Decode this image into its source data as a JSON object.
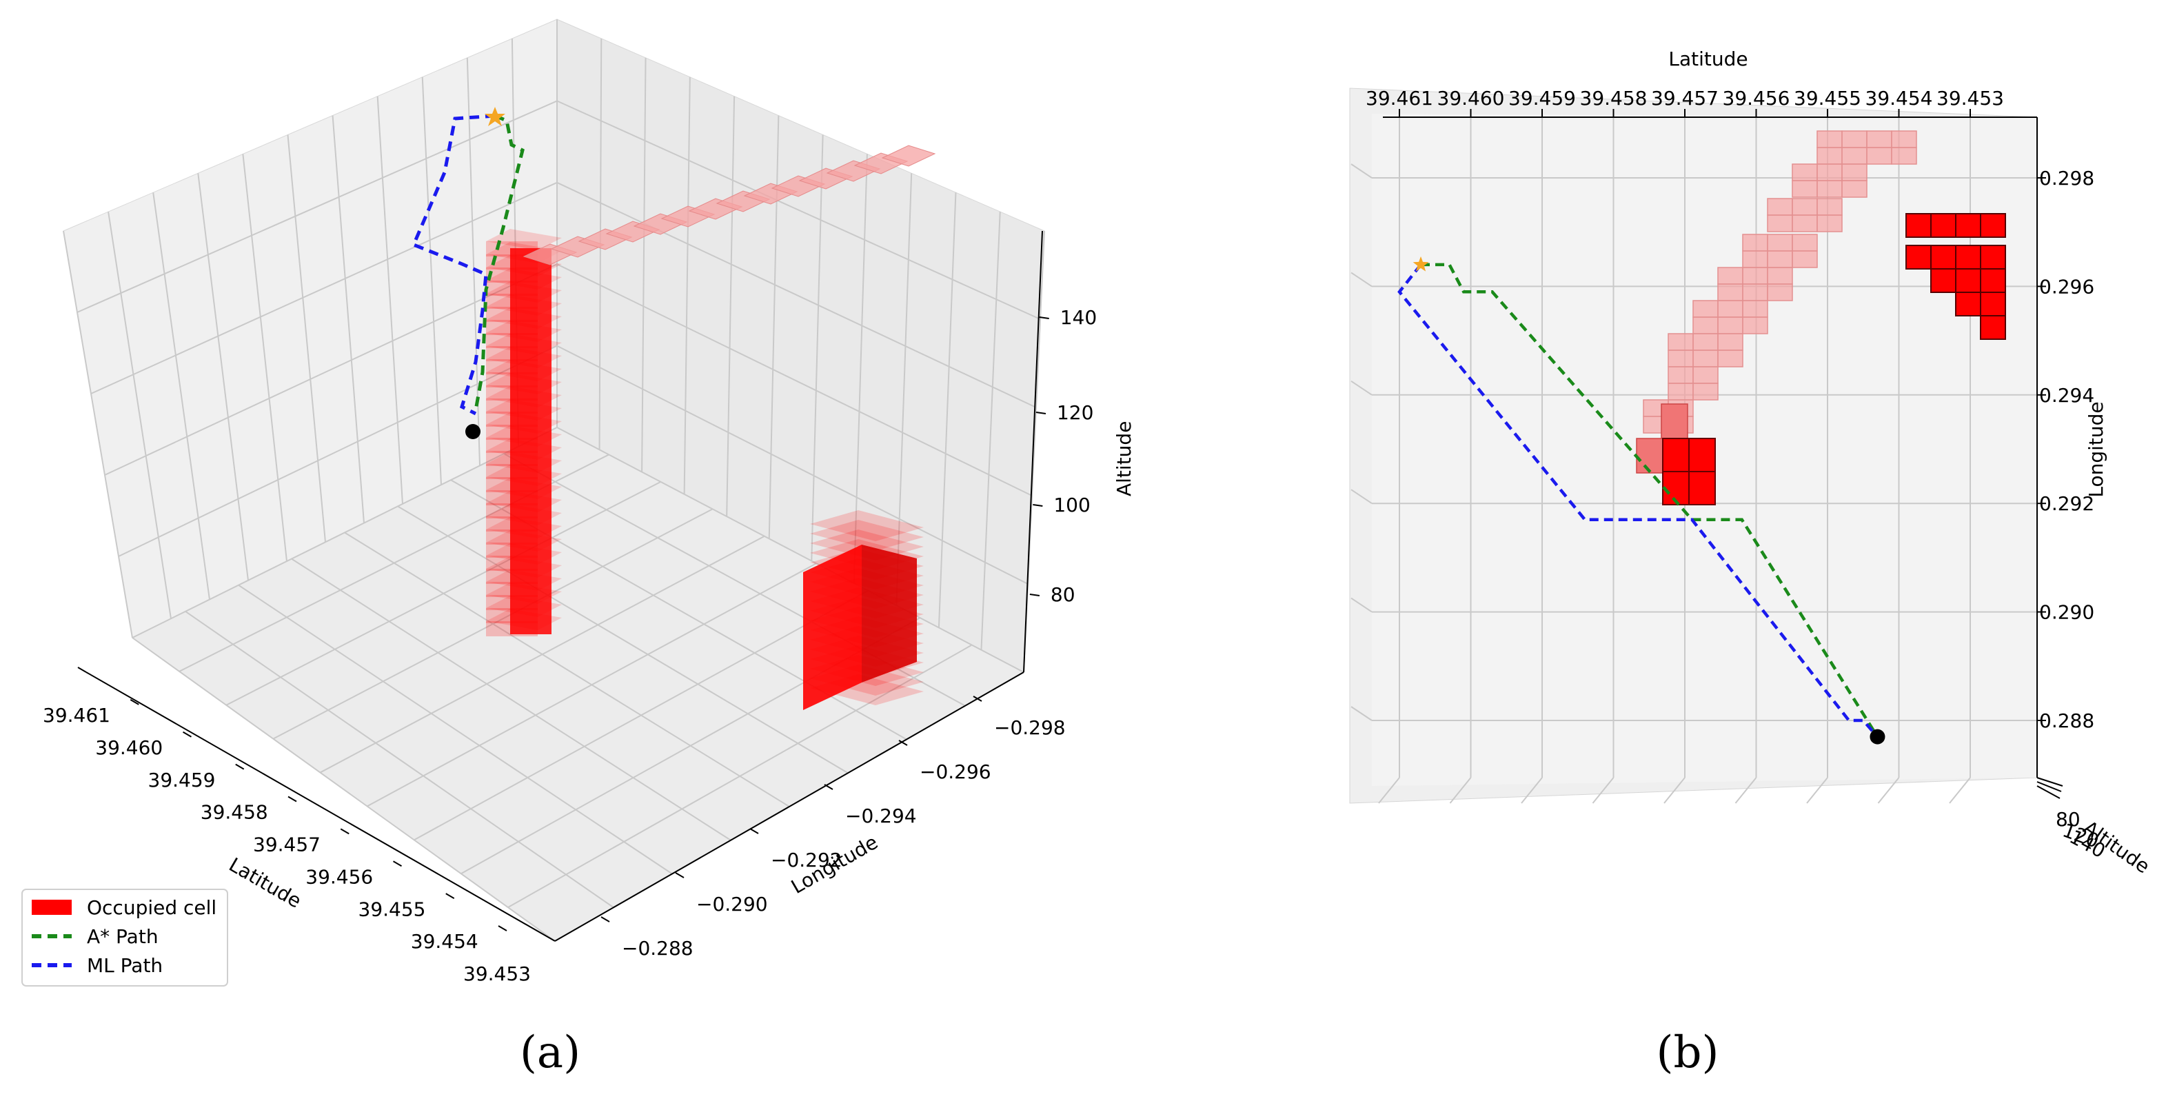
{
  "colors": {
    "occupied": "#ff0000",
    "occupied_light": "#f5a3a3",
    "astar": "#1a8a1a",
    "ml": "#1a1aee",
    "start": "#000000",
    "goal": "#f5a623",
    "pane": "#f2f2f2",
    "grid": "#cfcfcf"
  },
  "captions": {
    "a": "(a)",
    "b": "(b)"
  },
  "legend": [
    {
      "label": "Occupied cell",
      "kind": "patch"
    },
    {
      "label": "A* Path",
      "kind": "astar"
    },
    {
      "label": "ML Path",
      "kind": "ml"
    }
  ],
  "chart_data": [
    {
      "type": "scatter",
      "view": "3d-perspective",
      "xlabel": "Latitude",
      "ylabel": "Longitude",
      "zlabel": "Altitude",
      "lat_ticks": [
        "39.461",
        "39.460",
        "39.459",
        "39.458",
        "39.457",
        "39.456",
        "39.455",
        "39.454",
        "39.453"
      ],
      "lon_ticks": [
        "−0.288",
        "−0.290",
        "−0.292",
        "−0.294",
        "−0.296",
        "−0.298"
      ],
      "alt_ticks": [
        "80",
        "100",
        "120",
        "140"
      ],
      "series": [
        {
          "name": "A* Path"
        },
        {
          "name": "ML Path"
        }
      ],
      "legend_placement": "lower-left",
      "grid": true
    },
    {
      "type": "scatter",
      "view": "3d-top",
      "xlabel": "Latitude",
      "ylabel": "Longitude",
      "zlabel": "Altitude",
      "lat_ticks": [
        "39.461",
        "39.460",
        "39.459",
        "39.458",
        "39.457",
        "39.456",
        "39.455",
        "39.454",
        "39.453"
      ],
      "lon_ticks": [
        "0.298",
        "0.296",
        "0.294",
        "0.292",
        "0.290",
        "0.288"
      ],
      "alt_tick_overlap": "80",
      "alt_tick_overlap2": "120",
      "alt_tick_overlap3": "140",
      "series": [
        {
          "name": "A* Path",
          "points": [
            [
              39.4607,
              -0.2964
            ],
            [
              39.4603,
              -0.2964
            ],
            [
              39.4601,
              -0.2959
            ],
            [
              39.4597,
              -0.2959
            ],
            [
              39.4569,
              -0.2917
            ],
            [
              39.4562,
              -0.2917
            ],
            [
              39.4543,
              -0.2877
            ]
          ]
        },
        {
          "name": "ML Path",
          "points": [
            [
              39.4607,
              -0.2964
            ],
            [
              39.461,
              -0.2959
            ],
            [
              39.4584,
              -0.2917
            ],
            [
              39.4569,
              -0.2917
            ],
            [
              39.4547,
              -0.288
            ],
            [
              39.4545,
              -0.288
            ],
            [
              39.4543,
              -0.2877
            ]
          ]
        }
      ],
      "start": [
        39.4543,
        -0.2877
      ],
      "goal": [
        39.4607,
        -0.2964
      ],
      "grid": true
    }
  ]
}
